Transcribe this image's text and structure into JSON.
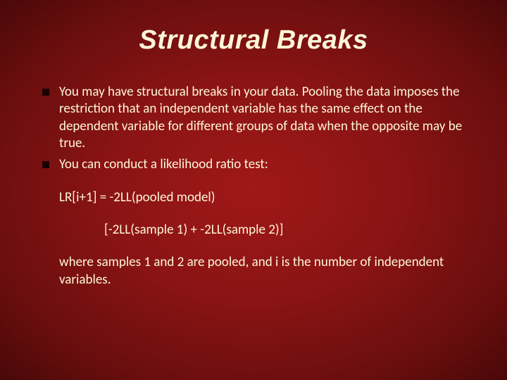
{
  "slide": {
    "title": "Structural Breaks",
    "bullets": [
      "You may have structural breaks in your data. Pooling the data imposes the restriction that an independent variable has the same effect on the dependent variable for different groups of data when the opposite may be true.",
      "You can conduct a likelihood ratio test:"
    ],
    "formula1": "LR[i+1] = -2LL(pooled model)",
    "formula2": "[-2LL(sample 1) + -2LL(sample 2)]",
    "closing": "where samples 1 and 2 are pooled, and i is the number of independent variables.",
    "colors": {
      "background_center": "#a01818",
      "background_edge": "#4a0808",
      "text": "#fdf6d8",
      "bullet": "#1a0000"
    },
    "typography": {
      "title_fontsize": 38,
      "title_weight": "bold",
      "title_style": "italic",
      "body_fontsize": 19,
      "body_family": "Calibri"
    }
  }
}
